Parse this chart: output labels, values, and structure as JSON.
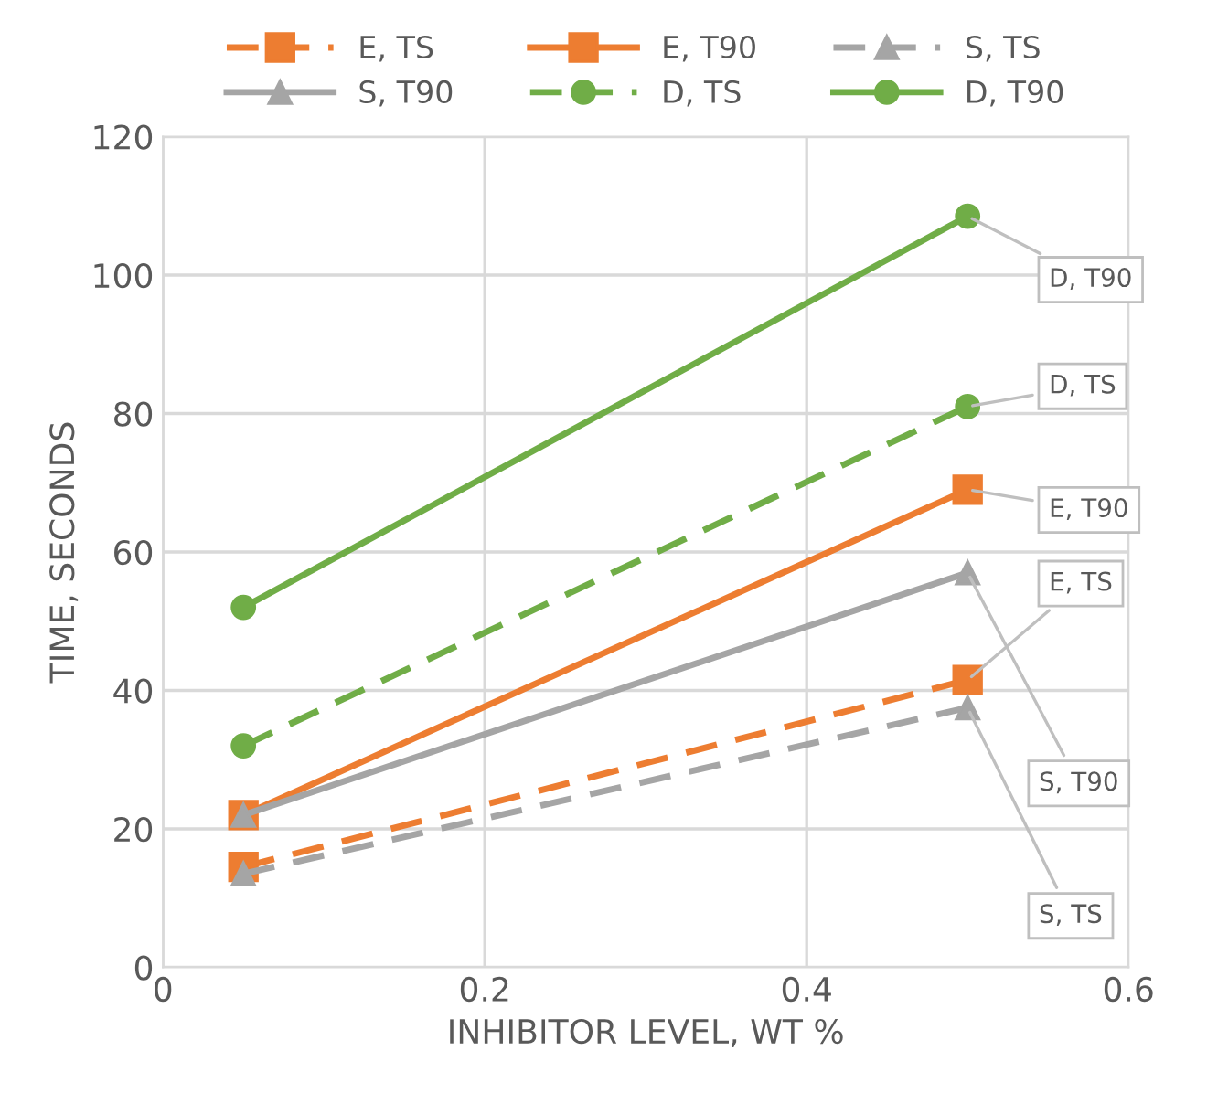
{
  "chart_data": {
    "type": "line",
    "xlabel": "INHIBITOR LEVEL, WT %",
    "ylabel": "TIME, SECONDS",
    "x": [
      0.05,
      0.5
    ],
    "series": [
      {
        "name": "E, TS",
        "color": "#ed7d31",
        "values": [
          14.5,
          41.5
        ],
        "marker": "square",
        "line_style": "dashed"
      },
      {
        "name": "E, T90",
        "color": "#ed7d31",
        "values": [
          22,
          69
        ],
        "marker": "square",
        "line_style": "solid"
      },
      {
        "name": "S, TS",
        "color": "#a5a5a5",
        "values": [
          13.5,
          37.5
        ],
        "marker": "triangle",
        "line_style": "dashed"
      },
      {
        "name": "S, T90",
        "color": "#a5a5a5",
        "values": [
          22,
          57
        ],
        "marker": "triangle",
        "line_style": "solid"
      },
      {
        "name": "D, TS",
        "color": "#70ad47",
        "values": [
          32,
          81
        ],
        "marker": "circle",
        "line_style": "dashed"
      },
      {
        "name": "D, T90",
        "color": "#70ad47",
        "values": [
          52,
          108.5
        ],
        "marker": "circle",
        "line_style": "solid"
      }
    ],
    "xlim": [
      0,
      0.6
    ],
    "xticks": [
      0,
      0.2,
      0.4,
      0.6
    ],
    "ylim": [
      0,
      120
    ],
    "yticks": [
      0,
      20,
      40,
      60,
      80,
      100,
      120
    ],
    "grid": true,
    "legend": "top"
  }
}
